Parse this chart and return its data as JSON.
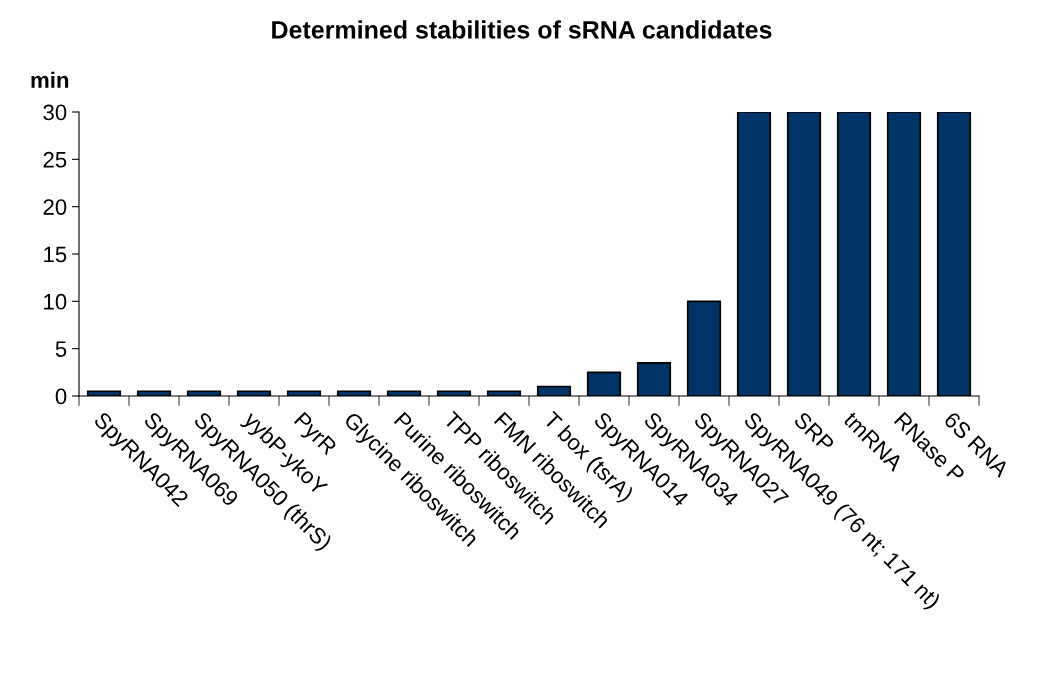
{
  "chart_data": {
    "type": "bar",
    "title": "Determined stabilities of sRNA candidates",
    "ylabel": "min",
    "categories": [
      "SpyRNA042",
      "SpyRNA069",
      "SpyRNA050 (thrS)",
      "yybP-ykoY",
      "PyrR",
      "Glycine riboswitch",
      "Purine riboswitch",
      "TPP riboswitch",
      "FMN riboswitch",
      "T box (tsrA)",
      "SpyRNA014",
      "SpyRNA034",
      "SpyRNA027",
      "SpyRNA049 (76 nt; 171 nt)",
      "SRP",
      "tmRNA",
      "RNase P",
      "6S RNA"
    ],
    "values": [
      0.5,
      0.5,
      0.5,
      0.5,
      0.5,
      0.5,
      0.5,
      0.5,
      0.5,
      1,
      2.5,
      3.5,
      10,
      30,
      30,
      30,
      30,
      30
    ],
    "color": "#003366",
    "ylim": [
      0,
      30
    ],
    "yticks": [
      0,
      5,
      10,
      15,
      20,
      25,
      30
    ],
    "grid": false,
    "legend": false
  }
}
